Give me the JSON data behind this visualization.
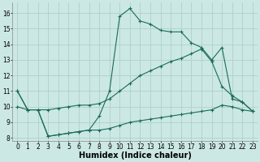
{
  "xlabel": "Humidex (Indice chaleur)",
  "xlim": [
    -0.5,
    23.5
  ],
  "ylim": [
    7.8,
    16.7
  ],
  "yticks": [
    8,
    9,
    10,
    11,
    12,
    13,
    14,
    15,
    16
  ],
  "xticks": [
    0,
    1,
    2,
    3,
    4,
    5,
    6,
    7,
    8,
    9,
    10,
    11,
    12,
    13,
    14,
    15,
    16,
    17,
    18,
    19,
    20,
    21,
    22,
    23
  ],
  "bg_color": "#cce8e4",
  "grid_color": "#aecfcb",
  "line_color": "#1a6b5a",
  "line1_x": [
    0,
    1,
    2,
    3,
    4,
    5,
    6,
    7,
    8,
    9,
    10,
    11,
    12,
    13,
    14,
    15,
    16,
    17,
    18,
    19,
    20,
    21,
    22,
    23
  ],
  "line1_y": [
    11.0,
    9.8,
    9.8,
    8.1,
    8.2,
    8.3,
    8.4,
    8.5,
    8.5,
    8.6,
    8.8,
    9.0,
    9.1,
    9.2,
    9.3,
    9.4,
    9.5,
    9.6,
    9.7,
    9.8,
    10.1,
    10.0,
    9.8,
    9.7
  ],
  "line2_x": [
    0,
    1,
    2,
    3,
    4,
    5,
    6,
    7,
    8,
    9,
    10,
    11,
    12,
    13,
    14,
    15,
    16,
    17,
    18,
    19,
    20,
    21,
    22,
    23
  ],
  "line2_y": [
    11.0,
    9.8,
    9.8,
    8.1,
    8.2,
    8.3,
    8.4,
    8.5,
    9.4,
    11.0,
    15.8,
    16.3,
    15.5,
    15.3,
    14.9,
    14.8,
    14.8,
    14.1,
    13.8,
    13.0,
    13.8,
    10.5,
    10.3,
    9.7
  ],
  "line3_x": [
    0,
    1,
    2,
    3,
    4,
    5,
    6,
    7,
    8,
    9,
    10,
    11,
    12,
    13,
    14,
    15,
    16,
    17,
    18,
    19,
    20,
    21,
    22,
    23
  ],
  "line3_y": [
    10.0,
    9.8,
    9.8,
    9.8,
    9.9,
    10.0,
    10.1,
    10.1,
    10.2,
    10.5,
    11.0,
    11.5,
    12.0,
    12.3,
    12.6,
    12.9,
    13.1,
    13.4,
    13.7,
    12.9,
    11.3,
    10.7,
    10.3,
    9.7
  ],
  "marker": "+",
  "markersize": 3,
  "linewidth": 0.8,
  "xlabel_fontsize": 7,
  "tick_fontsize": 5.5
}
